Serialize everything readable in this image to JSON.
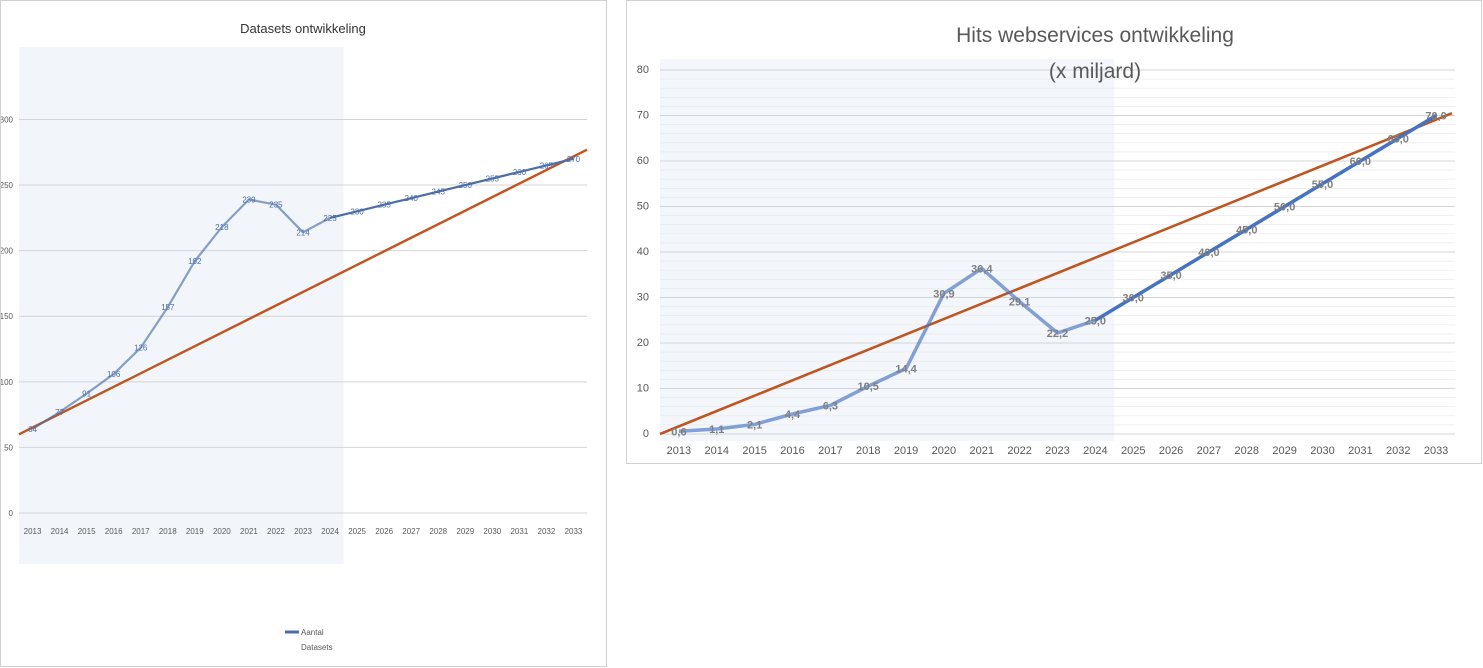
{
  "chart_data": [
    {
      "type": "line",
      "title": "Datasets ontwikkeling",
      "categories": [
        "2013",
        "2014",
        "2015",
        "2016",
        "2017",
        "2018",
        "2019",
        "2020",
        "2021",
        "2022",
        "2023",
        "2024",
        "2025",
        "2026",
        "2027",
        "2028",
        "2029",
        "2030",
        "2031",
        "2032",
        "2033"
      ],
      "yticks": [
        "0",
        "50",
        "100",
        "150",
        "200",
        "250",
        "300"
      ],
      "ylim": [
        0,
        340
      ],
      "grid": true,
      "series": [
        {
          "name": "Aantal Datasets",
          "values": [
            64,
            77,
            91,
            106,
            126,
            157,
            192,
            218,
            239,
            235,
            214,
            225,
            230,
            235,
            240,
            245,
            250,
            255,
            260,
            265,
            270
          ],
          "data_labels": [
            "64",
            "77",
            "91",
            "106",
            "126",
            "157",
            "192",
            "218",
            "239",
            "235",
            "214",
            "225",
            "230",
            "235",
            "240",
            "245",
            "250",
            "255",
            "260",
            "265",
            "270"
          ],
          "color": "#4a6ea8"
        }
      ],
      "trendline": {
        "from": 60,
        "to": 277,
        "color": "#c0561f"
      },
      "legend": {
        "placement": "bottom",
        "label_line1": "Aantal",
        "label_line2": "Datasets"
      },
      "highlight_categories": [
        "2013",
        "2024"
      ]
    },
    {
      "type": "line",
      "title": "Hits webservices ontwikkeling",
      "subtitle": "(x miljard)",
      "categories": [
        "2013",
        "2014",
        "2015",
        "2016",
        "2017",
        "2018",
        "2019",
        "2020",
        "2021",
        "2022",
        "2023",
        "2024",
        "2025",
        "2026",
        "2027",
        "2028",
        "2029",
        "2030",
        "2031",
        "2032",
        "2033"
      ],
      "yticks": [
        "0",
        "10",
        "20",
        "30",
        "40",
        "50",
        "60",
        "70",
        "80"
      ],
      "ylim": [
        0,
        80
      ],
      "grid": true,
      "series": [
        {
          "values": [
            0.6,
            1.1,
            2.1,
            4.4,
            6.3,
            10.5,
            14.4,
            30.9,
            36.4,
            29.1,
            22.2,
            25.0,
            30.0,
            35.0,
            40.0,
            45.0,
            50.0,
            55.0,
            60.0,
            65.0,
            70.0
          ],
          "data_labels": [
            "0,6",
            "1,1",
            "2,1",
            "4,4",
            "6,3",
            "10,5",
            "14,4",
            "30,9",
            "36,4",
            "29,1",
            "22,2",
            "25,0",
            "30,0",
            "35,0",
            "40,0",
            "45,0",
            "50,0",
            "55,0",
            "60,0",
            "65,0",
            "70,0"
          ],
          "color": "#4472c4"
        }
      ],
      "trendline": {
        "from": 0,
        "to": 70.5,
        "color": "#c0561f"
      },
      "highlight_categories": [
        "2013",
        "2024"
      ]
    }
  ]
}
